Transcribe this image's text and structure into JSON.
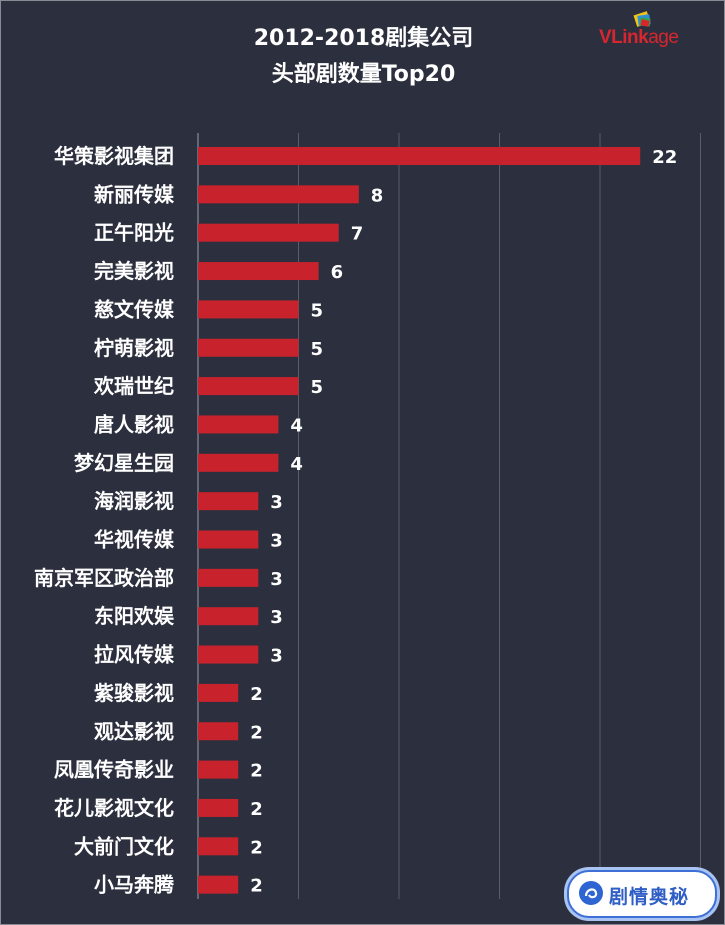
{
  "header": {
    "title_line1": "2012-2018剧集公司",
    "title_line2": "头部剧数量Top20"
  },
  "logo": {
    "text_main": "VLink",
    "text_tail": "age",
    "icon": "tilted-squares-logo-icon"
  },
  "watermark": {
    "text": "剧情奥秘",
    "icon": "swirl-logo-icon"
  },
  "colors": {
    "background": "#2c2f3e",
    "bar": "#c8232c",
    "text": "#ffffff",
    "grid": "#595c6b",
    "logo_red": "#d8262e",
    "watermark_blue": "#2f5fc4"
  },
  "chart_data": {
    "type": "bar",
    "orientation": "horizontal",
    "title": "2012-2018剧集公司 头部剧数量Top20",
    "xlim": [
      0,
      26
    ],
    "grid": true,
    "data_labels": true,
    "categories": [
      "华策影视集团",
      "新丽传媒",
      "正午阳光",
      "完美影视",
      "慈文传媒",
      "柠萌影视",
      "欢瑞世纪",
      "唐人影视",
      "梦幻星生园",
      "海润影视",
      "华视传媒",
      "南京军区政治部",
      "东阳欢娱",
      "拉风传媒",
      "紫骏影视",
      "观达影视",
      "凤凰传奇影业",
      "花儿影视文化",
      "大前门文化",
      "小马奔腾"
    ],
    "values": [
      22,
      8,
      7,
      6,
      5,
      5,
      5,
      4,
      4,
      3,
      3,
      3,
      3,
      3,
      2,
      2,
      2,
      2,
      2,
      2
    ]
  }
}
